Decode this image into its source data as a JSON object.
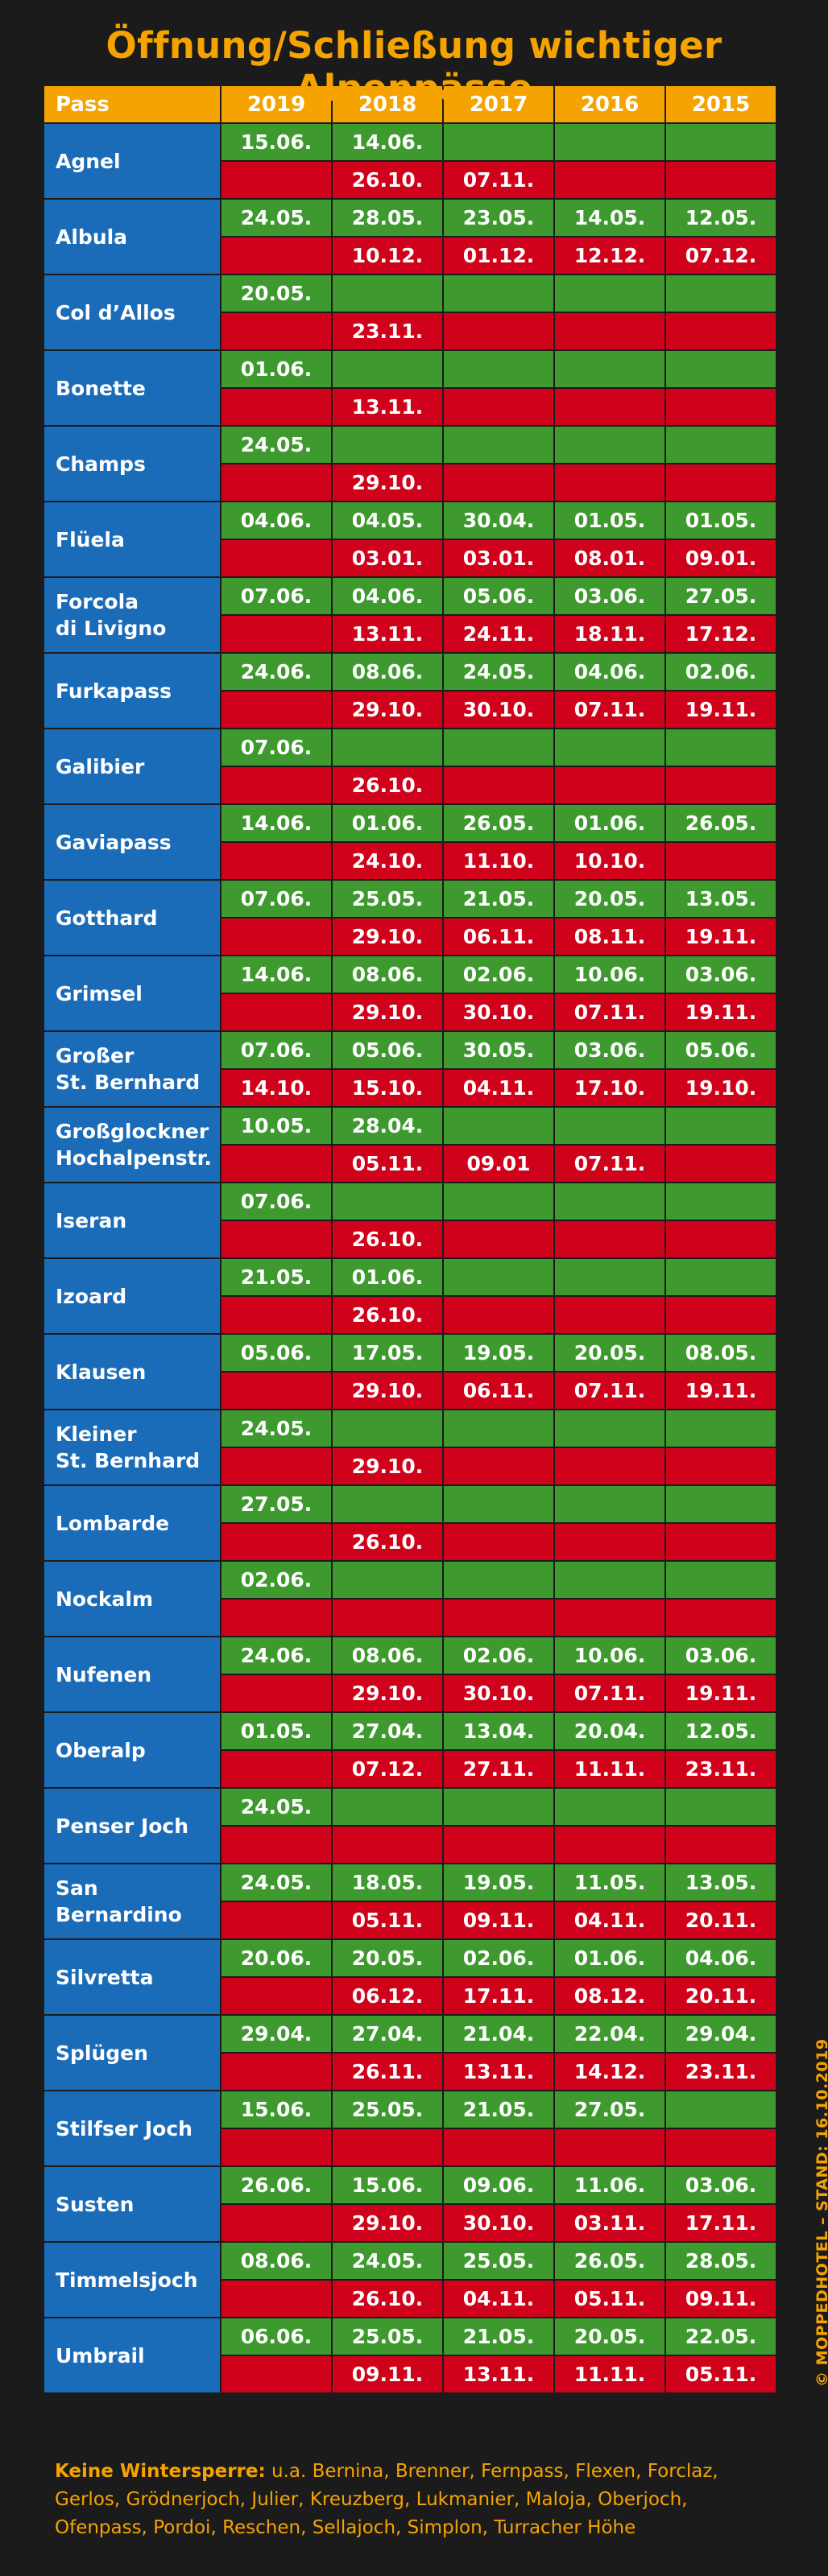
{
  "title": "Öffnung/Schließung wichtiger Alpenpässe",
  "headers": [
    "Pass",
    "2019",
    "2018",
    "2017",
    "2016",
    "2015"
  ],
  "passes": [
    {
      "name": "Agnel",
      "open": [
        "15.06.",
        "14.06.",
        "",
        "",
        ""
      ],
      "close": [
        "",
        "26.10.",
        "07.11.",
        "",
        ""
      ]
    },
    {
      "name": "Albula",
      "open": [
        "24.05.",
        "28.05.",
        "23.05.",
        "14.05.",
        "12.05."
      ],
      "close": [
        "",
        "10.12.",
        "01.12.",
        "12.12.",
        "07.12."
      ]
    },
    {
      "name": "Col d’Allos",
      "open": [
        "20.05.",
        "",
        "",
        "",
        ""
      ],
      "close": [
        "",
        "23.11.",
        "",
        "",
        ""
      ]
    },
    {
      "name": "Bonette",
      "open": [
        "01.06.",
        "",
        "",
        "",
        ""
      ],
      "close": [
        "",
        "13.11.",
        "",
        "",
        ""
      ]
    },
    {
      "name": "Champs",
      "open": [
        "24.05.",
        "",
        "",
        "",
        ""
      ],
      "close": [
        "",
        "29.10.",
        "",
        "",
        ""
      ]
    },
    {
      "name": "Flüela",
      "open": [
        "04.06.",
        "04.05.",
        "30.04.",
        "01.05.",
        "01.05."
      ],
      "close": [
        "",
        "03.01.",
        "03.01.",
        "08.01.",
        "09.01."
      ]
    },
    {
      "name": "Forcola\ndi Livigno",
      "open": [
        "07.06.",
        "04.06.",
        "05.06.",
        "03.06.",
        "27.05."
      ],
      "close": [
        "",
        "13.11.",
        "24.11.",
        "18.11.",
        "17.12."
      ]
    },
    {
      "name": "Furkapass",
      "open": [
        "24.06.",
        "08.06.",
        "24.05.",
        "04.06.",
        "02.06."
      ],
      "close": [
        "",
        "29.10.",
        "30.10.",
        "07.11.",
        "19.11."
      ]
    },
    {
      "name": "Galibier",
      "open": [
        "07.06.",
        "",
        "",
        "",
        ""
      ],
      "close": [
        "",
        "26.10.",
        "",
        "",
        ""
      ]
    },
    {
      "name": "Gaviapass",
      "open": [
        "14.06.",
        "01.06.",
        "26.05.",
        "01.06.",
        "26.05."
      ],
      "close": [
        "",
        "24.10.",
        "11.10.",
        "10.10.",
        ""
      ]
    },
    {
      "name": "Gotthard",
      "open": [
        "07.06.",
        "25.05.",
        "21.05.",
        "20.05.",
        "13.05."
      ],
      "close": [
        "",
        "29.10.",
        "06.11.",
        "08.11.",
        "19.11."
      ]
    },
    {
      "name": "Grimsel",
      "open": [
        "14.06.",
        "08.06.",
        "02.06.",
        "10.06.",
        "03.06."
      ],
      "close": [
        "",
        "29.10.",
        "30.10.",
        "07.11.",
        "19.11."
      ]
    },
    {
      "name": "Großer\nSt. Bernhard",
      "open": [
        "07.06.",
        "05.06.",
        "30.05.",
        "03.06.",
        "05.06."
      ],
      "close": [
        "14.10.",
        "15.10.",
        "04.11.",
        "17.10.",
        "19.10."
      ]
    },
    {
      "name": "Großglockner\nHochalpenstr.",
      "open": [
        "10.05.",
        "28.04.",
        "",
        "",
        ""
      ],
      "close": [
        "",
        "05.11.",
        "09.01",
        "07.11.",
        ""
      ]
    },
    {
      "name": "Iseran",
      "open": [
        "07.06.",
        "",
        "",
        "",
        ""
      ],
      "close": [
        "",
        "26.10.",
        "",
        "",
        ""
      ]
    },
    {
      "name": "Izoard",
      "open": [
        "21.05.",
        "01.06.",
        "",
        "",
        ""
      ],
      "close": [
        "",
        "26.10.",
        "",
        "",
        ""
      ]
    },
    {
      "name": "Klausen",
      "open": [
        "05.06.",
        "17.05.",
        "19.05.",
        "20.05.",
        "08.05."
      ],
      "close": [
        "",
        "29.10.",
        "06.11.",
        "07.11.",
        "19.11."
      ]
    },
    {
      "name": "Kleiner\nSt. Bernhard",
      "open": [
        "24.05.",
        "",
        "",
        "",
        ""
      ],
      "close": [
        "",
        "29.10.",
        "",
        "",
        ""
      ]
    },
    {
      "name": "Lombarde",
      "open": [
        "27.05.",
        "",
        "",
        "",
        ""
      ],
      "close": [
        "",
        "26.10.",
        "",
        "",
        ""
      ]
    },
    {
      "name": "Nockalm",
      "open": [
        "02.06.",
        "",
        "",
        "",
        ""
      ],
      "close": [
        "",
        "",
        "",
        "",
        ""
      ]
    },
    {
      "name": "Nufenen",
      "open": [
        "24.06.",
        "08.06.",
        "02.06.",
        "10.06.",
        "03.06."
      ],
      "close": [
        "",
        "29.10.",
        "30.10.",
        "07.11.",
        "19.11."
      ]
    },
    {
      "name": "Oberalp",
      "open": [
        "01.05.",
        "27.04.",
        "13.04.",
        "20.04.",
        "12.05."
      ],
      "close": [
        "",
        "07.12.",
        "27.11.",
        "11.11.",
        "23.11."
      ]
    },
    {
      "name": "Penser Joch",
      "open": [
        "24.05.",
        "",
        "",
        "",
        ""
      ],
      "close": [
        "",
        "",
        "",
        "",
        ""
      ]
    },
    {
      "name": "San\nBernardino",
      "open": [
        "24.05.",
        "18.05.",
        "19.05.",
        "11.05.",
        "13.05."
      ],
      "close": [
        "",
        "05.11.",
        "09.11.",
        "04.11.",
        "20.11."
      ]
    },
    {
      "name": "Silvretta",
      "open": [
        "20.06.",
        "20.05.",
        "02.06.",
        "01.06.",
        "04.06."
      ],
      "close": [
        "",
        "06.12.",
        "17.11.",
        "08.12.",
        "20.11."
      ]
    },
    {
      "name": "Splügen",
      "open": [
        "29.04.",
        "27.04.",
        "21.04.",
        "22.04.",
        "29.04."
      ],
      "close": [
        "",
        "26.11.",
        "13.11.",
        "14.12.",
        "23.11."
      ]
    },
    {
      "name": "Stilfser Joch",
      "open": [
        "15.06.",
        "25.05.",
        "21.05.",
        "27.05.",
        ""
      ],
      "close": [
        "",
        "",
        "",
        "",
        ""
      ]
    },
    {
      "name": "Susten",
      "open": [
        "26.06.",
        "15.06.",
        "09.06.",
        "11.06.",
        "03.06."
      ],
      "close": [
        "",
        "29.10.",
        "30.10.",
        "03.11.",
        "17.11."
      ]
    },
    {
      "name": "Timmelsjoch",
      "open": [
        "08.06.",
        "24.05.",
        "25.05.",
        "26.05.",
        "28.05."
      ],
      "close": [
        "",
        "26.10.",
        "04.11.",
        "05.11.",
        "09.11."
      ]
    },
    {
      "name": "Umbrail",
      "open": [
        "06.06.",
        "25.05.",
        "21.05.",
        "20.05.",
        "22.05."
      ],
      "close": [
        "",
        "09.11.",
        "13.11.",
        "11.11.",
        "05.11."
      ]
    }
  ],
  "footer": {
    "label": "Keine Wintersperre:",
    "text": " u.a. Bernina, Brenner, Fernpass, Flexen, Forclaz, Gerlos, Grödnerjoch, Julier, Kreuzberg, Lukmanier, Maloja, Oberjoch, Ofenpass, Pordoi, Reschen, Sellajoch, Simplon, Turracher Höhe"
  },
  "credit": "© MOPPEDHOTEL – STAND: 16.10.2019",
  "colors": {
    "header": "#f5a300",
    "pass": "#1a6cb8",
    "open": "#3e9a2e",
    "close": "#d0021b",
    "background": "#1b1b1b"
  }
}
